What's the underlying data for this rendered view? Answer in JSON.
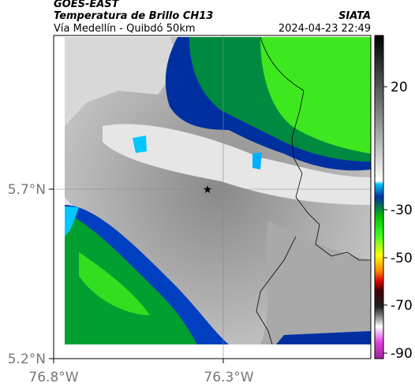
{
  "header": {
    "title": "GOES-EAST",
    "subtitle": "Temperatura de Brillo CH13",
    "location": "Vía Medellín - Quibdó 50km",
    "agency": "SIATA",
    "timestamp": "2024-04-23 22:49"
  },
  "map": {
    "lat_labels": [
      "5.7°N",
      "5.2°N"
    ],
    "lon_labels": [
      "76.8°W",
      "76.3°W"
    ]
  },
  "colorbar": {
    "ticks": [
      "20",
      "-30",
      "-50",
      "-70",
      "-90"
    ]
  }
}
